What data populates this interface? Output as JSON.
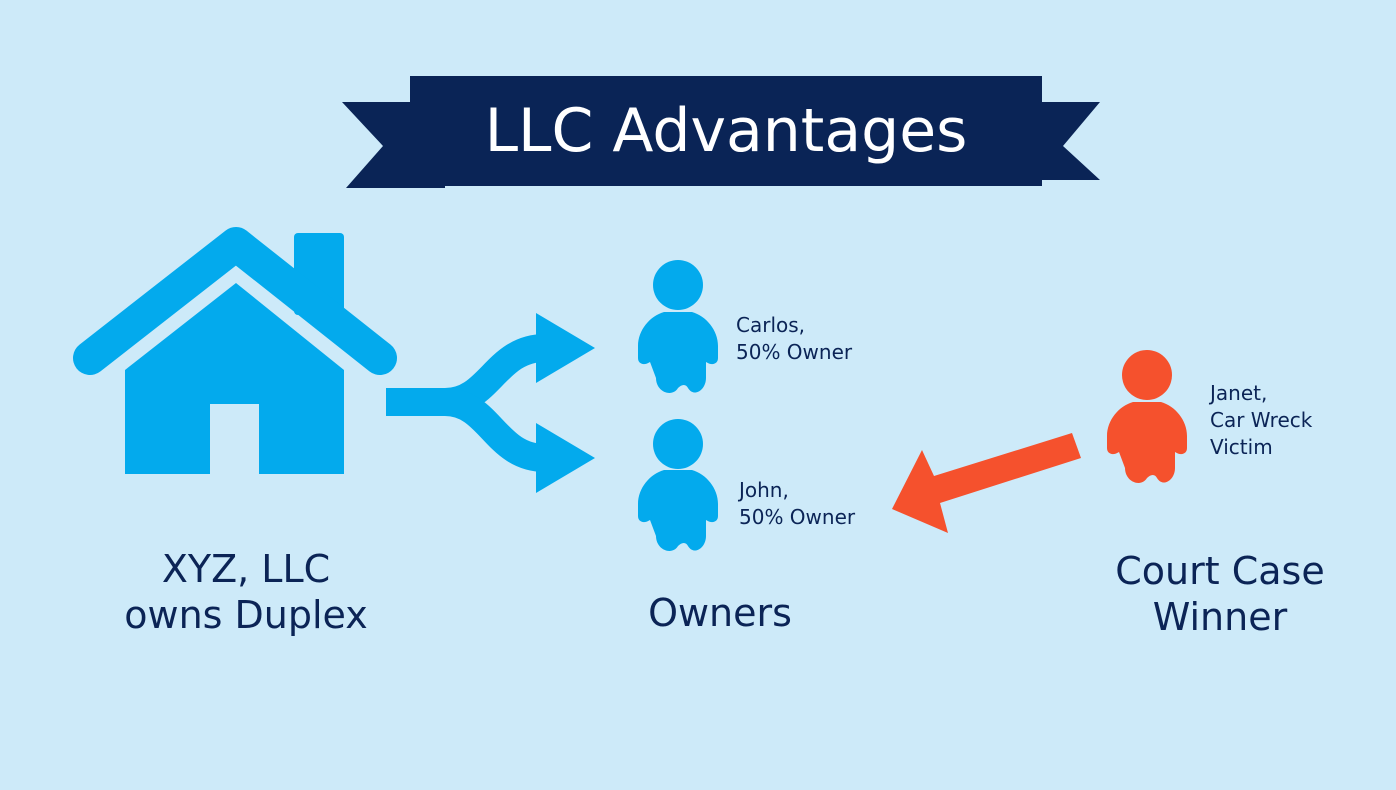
{
  "title": "LLC Advantages",
  "colors": {
    "background": "#cdeaf9",
    "banner": "#0a2456",
    "owner_blue": "#03aaed",
    "claimant_orange": "#f5512d",
    "text": "#0b2456"
  },
  "property": {
    "icon": "house-icon",
    "caption_line1": "XYZ, LLC",
    "caption_line2": "owns Duplex"
  },
  "split_arrow": {
    "icon": "split-arrow-icon"
  },
  "owners": {
    "caption": "Owners",
    "people": [
      {
        "icon": "person-icon",
        "line1": "Carlos,",
        "line2": "50% Owner"
      },
      {
        "icon": "person-icon",
        "line1": "John,",
        "line2": "50% Owner"
      }
    ]
  },
  "claimant": {
    "icon": "person-icon",
    "line1": "Janet,",
    "line2": "Car Wreck",
    "line3": "Victim",
    "caption_line1": "Court Case",
    "caption_line2": "Winner",
    "arrow_icon": "arrow-left-icon"
  }
}
